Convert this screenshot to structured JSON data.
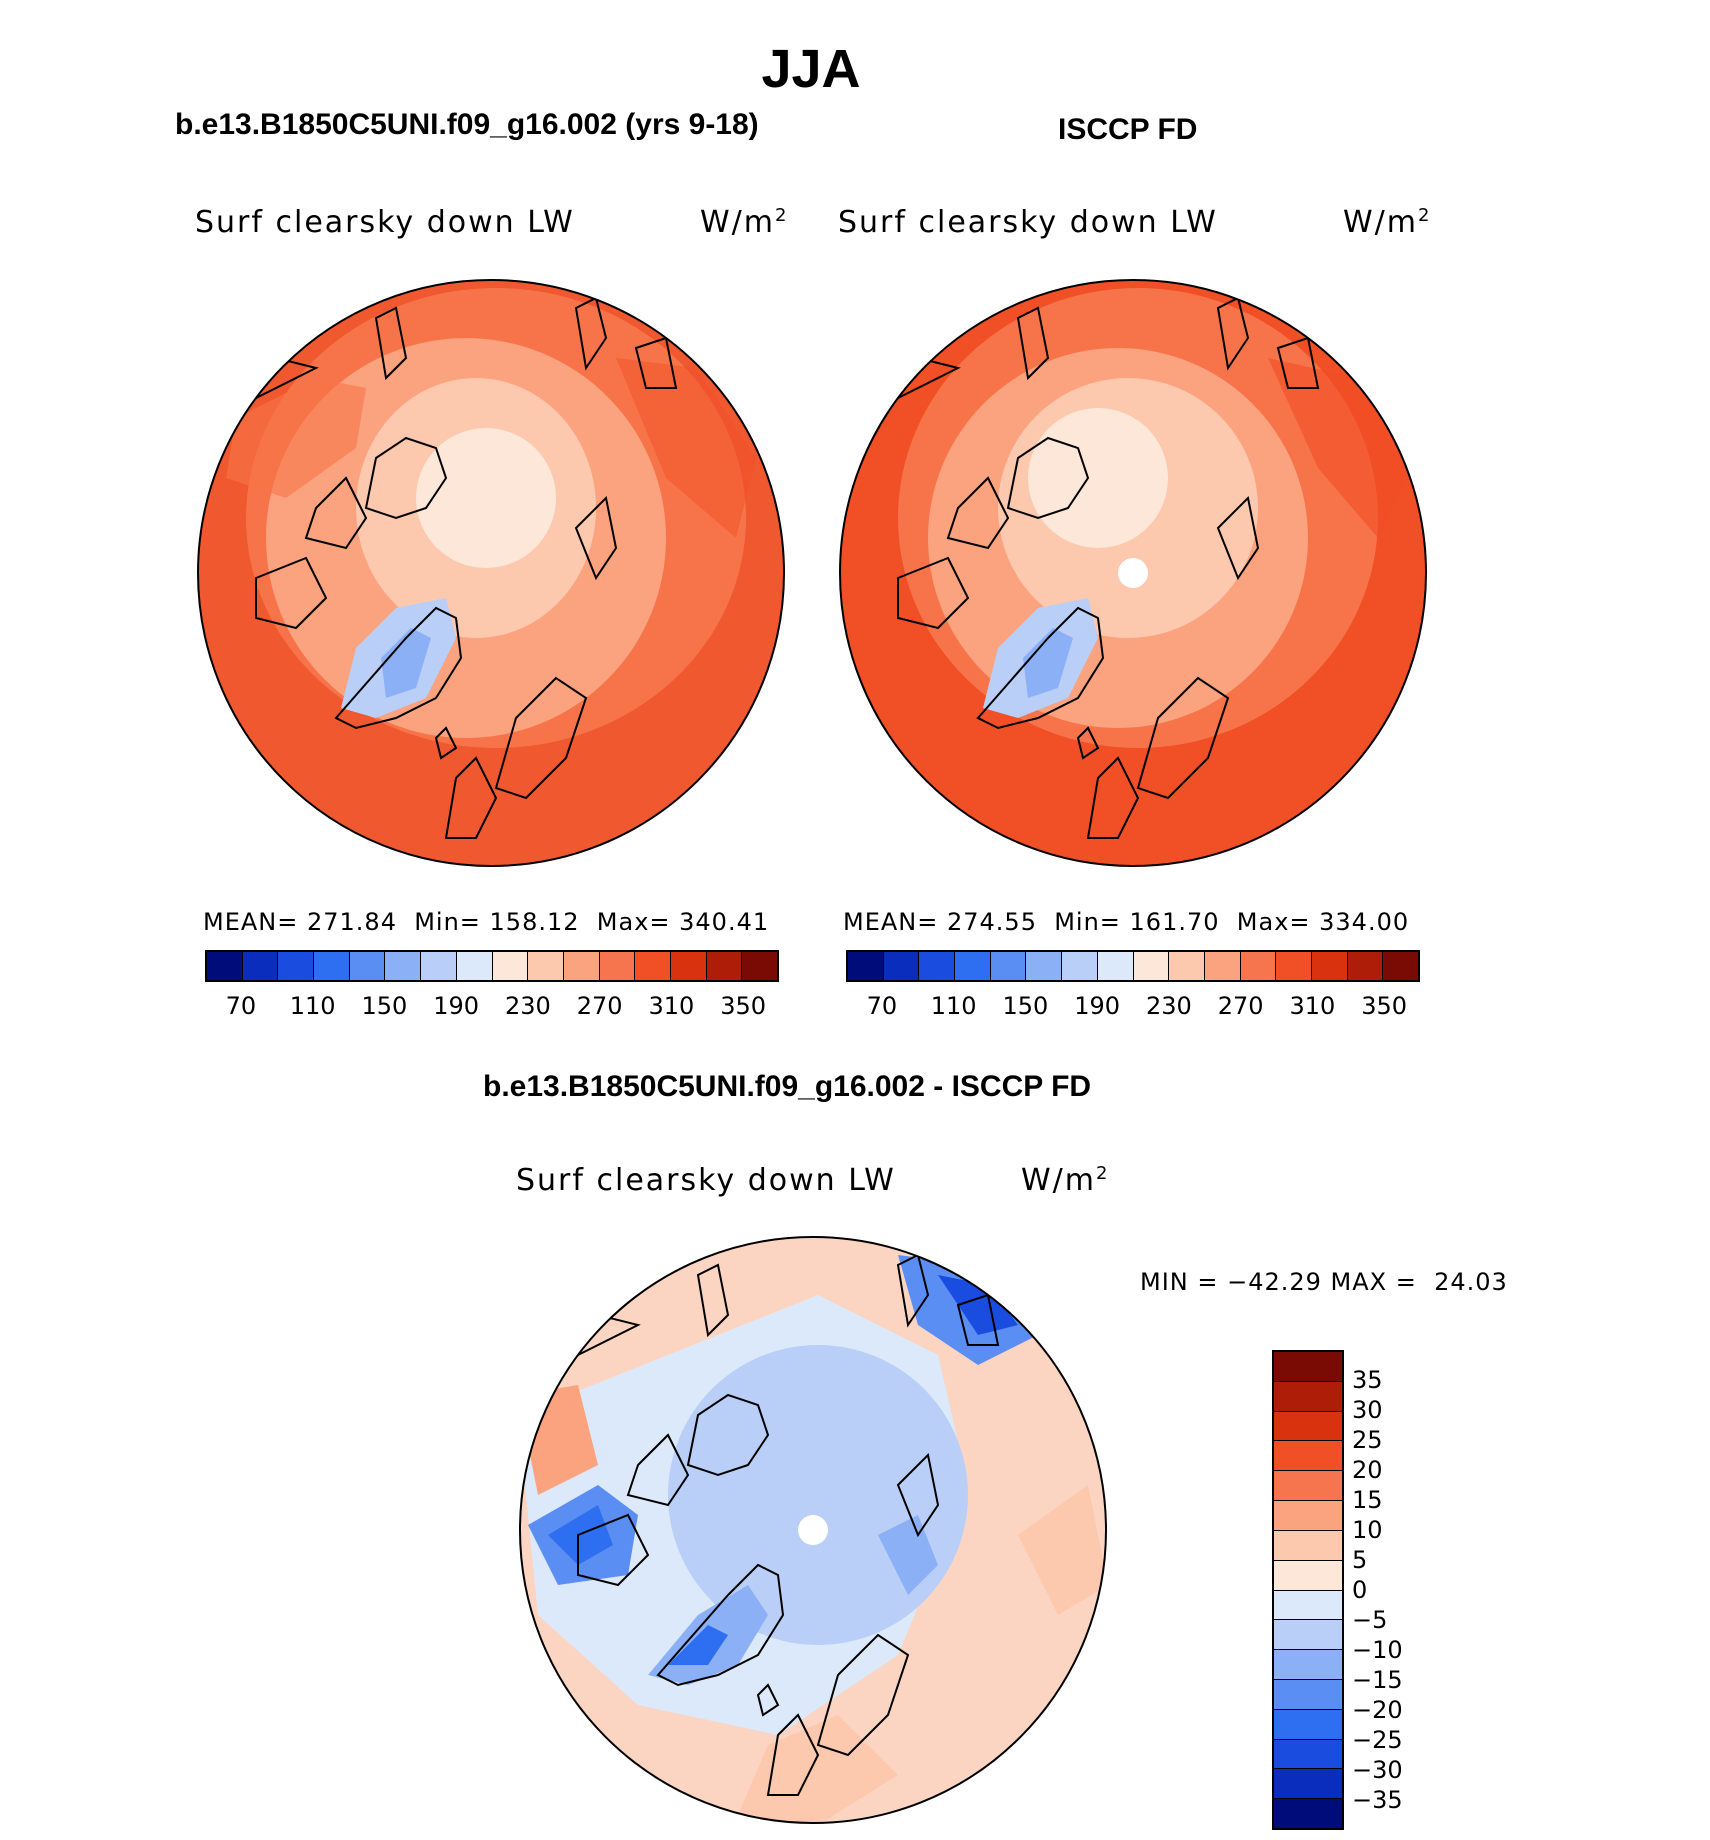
{
  "title": "JJA",
  "panels": {
    "model": {
      "title": "b.e13.B1850C5UNI.f09_g16.002 (yrs 9-18)",
      "variable": "Surf clearsky down LW",
      "units": "W/m",
      "units_exp": "2",
      "stats": "MEAN= 271.84  Min= 158.12  Max= 340.41"
    },
    "obs": {
      "title": "ISCCP FD",
      "variable": "Surf clearsky down LW",
      "units": "W/m",
      "units_exp": "2",
      "stats": "MEAN= 274.55  Min= 161.70  Max= 334.00"
    },
    "diff": {
      "title": "b.e13.B1850C5UNI.f09_g16.002 - ISCCP FD",
      "variable": "Surf clearsky down LW",
      "units": "W/m",
      "units_exp": "2",
      "stats": "MIN = −42.29 MAX =  24.03"
    }
  },
  "abs_colorbar": {
    "colors": [
      "#000c7a",
      "#0a2dbd",
      "#1a4ce0",
      "#2e6ef0",
      "#5b8ef2",
      "#8cb0f5",
      "#b9cff8",
      "#dce9fa",
      "#fde7d8",
      "#fcc8ae",
      "#fba27e",
      "#f7754e",
      "#f14f26",
      "#d9320f",
      "#ae1d07",
      "#7a0a04"
    ],
    "tick_labels": [
      "70",
      "110",
      "150",
      "190",
      "230",
      "270",
      "310",
      "350"
    ]
  },
  "diff_colorbar": {
    "colors": [
      "#7a0a04",
      "#ae1d07",
      "#d9320f",
      "#f14f26",
      "#f7754e",
      "#fba27e",
      "#fcc8ae",
      "#fde7d8",
      "#dce9fa",
      "#b9cff8",
      "#8cb0f5",
      "#5b8ef2",
      "#2e6ef0",
      "#1a4ce0",
      "#0a2dbd",
      "#000c7a"
    ],
    "tick_labels": [
      "35",
      "30",
      "25",
      "20",
      "15",
      "10",
      "5",
      "0",
      "−5",
      "−10",
      "−15",
      "−20",
      "−25",
      "−30",
      "−35"
    ]
  },
  "map_colors": {
    "abs_outer": "#f0582f",
    "abs_mid": "#f7744a",
    "abs_inner": "#fba27e",
    "abs_center": "#fcd5c2",
    "abs_greenland": "#8cb0f5",
    "diff_base": "#fcd5c2",
    "diff_blue": "#b9cff8",
    "diff_deep": "#3a6ee0"
  }
}
